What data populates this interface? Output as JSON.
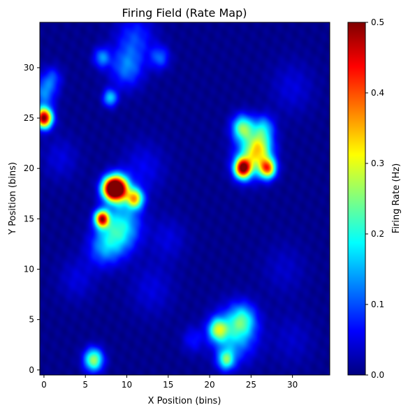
{
  "chart_data": {
    "type": "heatmap",
    "title": "Firing Field (Rate Map)",
    "xlabel": "X Position (bins)",
    "ylabel": "Y Position (bins)",
    "xlim": [
      -0.5,
      34.5
    ],
    "ylim": [
      -0.5,
      34.5
    ],
    "x_ticks": [
      0,
      5,
      10,
      15,
      20,
      25,
      30
    ],
    "y_ticks": [
      0,
      5,
      10,
      15,
      20,
      25,
      30
    ],
    "grid": false,
    "colormap": "jet",
    "interpolation": "smooth",
    "colorbar": {
      "label": "Firing Rate (Hz)",
      "range": [
        0.0,
        0.5
      ],
      "ticks": [
        "0.0",
        "0.1",
        "0.2",
        "0.3",
        "0.4",
        "0.5"
      ]
    },
    "background_rate": 0.0,
    "hotspots": [
      {
        "x": 0,
        "y": 25,
        "peak": 0.5,
        "sigma": 0.7
      },
      {
        "x": 0,
        "y": 27.5,
        "peak": 0.12,
        "sigma": 1.0
      },
      {
        "x": 1,
        "y": 29,
        "peak": 0.08,
        "sigma": 0.8
      },
      {
        "x": 8,
        "y": 27,
        "peak": 0.16,
        "sigma": 0.6
      },
      {
        "x": 7,
        "y": 31,
        "peak": 0.12,
        "sigma": 0.7
      },
      {
        "x": 10,
        "y": 30,
        "peak": 0.11,
        "sigma": 1.4
      },
      {
        "x": 11,
        "y": 33,
        "peak": 0.08,
        "sigma": 1.6
      },
      {
        "x": 14,
        "y": 31,
        "peak": 0.1,
        "sigma": 0.8
      },
      {
        "x": 9,
        "y": 18,
        "peak": 0.48,
        "sigma": 0.9
      },
      {
        "x": 8,
        "y": 18,
        "peak": 0.35,
        "sigma": 0.8
      },
      {
        "x": 11,
        "y": 17,
        "peak": 0.3,
        "sigma": 0.7
      },
      {
        "x": 7,
        "y": 15,
        "peak": 0.42,
        "sigma": 0.6
      },
      {
        "x": 9.5,
        "y": 14.5,
        "peak": 0.14,
        "sigma": 1.6
      },
      {
        "x": 8.5,
        "y": 13,
        "peak": 0.1,
        "sigma": 1.5
      },
      {
        "x": 7,
        "y": 12,
        "peak": 0.08,
        "sigma": 1.3
      },
      {
        "x": 12,
        "y": 20,
        "peak": 0.05,
        "sigma": 1.8
      },
      {
        "x": 24,
        "y": 20,
        "peak": 0.44,
        "sigma": 0.7
      },
      {
        "x": 27,
        "y": 20,
        "peak": 0.35,
        "sigma": 0.7
      },
      {
        "x": 24,
        "y": 24,
        "peak": 0.24,
        "sigma": 0.9
      },
      {
        "x": 26,
        "y": 22,
        "peak": 0.22,
        "sigma": 1.1
      },
      {
        "x": 25,
        "y": 21,
        "peak": 0.16,
        "sigma": 1.4
      },
      {
        "x": 26.5,
        "y": 24,
        "peak": 0.14,
        "sigma": 0.9
      },
      {
        "x": 21,
        "y": 4,
        "peak": 0.22,
        "sigma": 0.8
      },
      {
        "x": 23,
        "y": 3.5,
        "peak": 0.15,
        "sigma": 1.8
      },
      {
        "x": 24,
        "y": 5,
        "peak": 0.14,
        "sigma": 1.1
      },
      {
        "x": 22,
        "y": 1,
        "peak": 0.2,
        "sigma": 0.7
      },
      {
        "x": 18,
        "y": 3,
        "peak": 0.06,
        "sigma": 0.9
      },
      {
        "x": 6,
        "y": 1,
        "peak": 0.26,
        "sigma": 0.8
      },
      {
        "x": 2,
        "y": 21,
        "peak": 0.04,
        "sigma": 1.5
      },
      {
        "x": 4,
        "y": 9,
        "peak": 0.04,
        "sigma": 1.5
      },
      {
        "x": 13,
        "y": 8,
        "peak": 0.04,
        "sigma": 1.8
      },
      {
        "x": 15,
        "y": 13,
        "peak": 0.04,
        "sigma": 1.5
      },
      {
        "x": 30,
        "y": 28,
        "peak": 0.04,
        "sigma": 1.8
      },
      {
        "x": 29,
        "y": 10,
        "peak": 0.03,
        "sigma": 1.8
      },
      {
        "x": 30,
        "y": 3,
        "peak": 0.03,
        "sigma": 1.8
      }
    ]
  }
}
